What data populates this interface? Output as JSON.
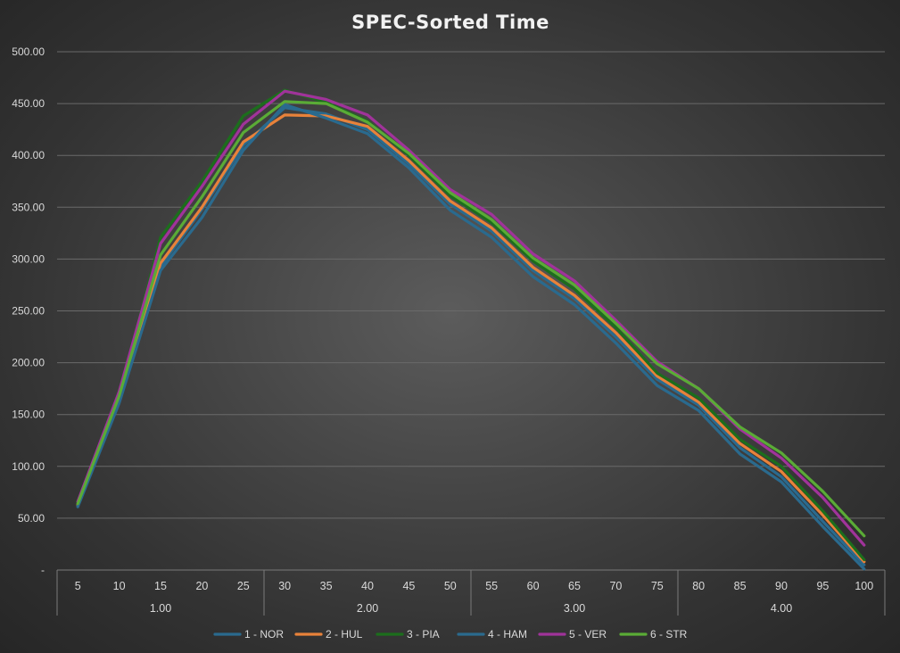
{
  "chart_data": {
    "type": "line",
    "title": "SPEC-Sorted Time",
    "xlabel": "",
    "ylabel": "",
    "ylim": [
      0,
      500
    ],
    "y_ticks": [
      {
        "value": 0,
        "label": "-"
      },
      {
        "value": 50,
        "label": "50.00"
      },
      {
        "value": 100,
        "label": "100.00"
      },
      {
        "value": 150,
        "label": "150.00"
      },
      {
        "value": 200,
        "label": "200.00"
      },
      {
        "value": 250,
        "label": "250.00"
      },
      {
        "value": 300,
        "label": "300.00"
      },
      {
        "value": 350,
        "label": "350.00"
      },
      {
        "value": 400,
        "label": "400.00"
      },
      {
        "value": 450,
        "label": "450.00"
      },
      {
        "value": 500,
        "label": "500.00"
      }
    ],
    "categories": [
      "5",
      "10",
      "15",
      "20",
      "25",
      "30",
      "35",
      "40",
      "45",
      "50",
      "55",
      "60",
      "65",
      "70",
      "75",
      "80",
      "85",
      "90",
      "95",
      "100"
    ],
    "groups": [
      {
        "label": "1.00",
        "start": 0,
        "end": 4
      },
      {
        "label": "2.00",
        "start": 5,
        "end": 9
      },
      {
        "label": "3.00",
        "start": 10,
        "end": 14
      },
      {
        "label": "4.00",
        "start": 15,
        "end": 19
      }
    ],
    "legend_position": "bottom",
    "series": [
      {
        "name": "1 - NOR",
        "color": "#2a6a8e",
        "values": [
          62,
          163,
          293,
          348,
          410,
          446,
          440,
          425,
          392,
          353,
          327,
          289,
          262,
          225,
          184,
          159,
          118,
          90,
          47,
          5
        ]
      },
      {
        "name": "2 - HUL",
        "color": "#e8823a",
        "values": [
          63,
          165,
          296,
          350,
          413,
          439,
          438,
          428,
          395,
          356,
          330,
          292,
          265,
          229,
          187,
          162,
          122,
          95,
          53,
          8
        ]
      },
      {
        "name": "3 - PIA",
        "color": "#1c6e1c",
        "values": [
          64,
          168,
          321,
          375,
          438,
          463,
          451,
          433,
          400,
          361,
          335,
          298,
          271,
          234,
          190,
          166,
          126,
          100,
          57,
          10
        ]
      },
      {
        "name": "4 - HAM",
        "color": "#2a6a8e",
        "values": [
          61,
          161,
          289,
          340,
          405,
          449,
          436,
          421,
          388,
          347,
          321,
          283,
          256,
          219,
          178,
          154,
          112,
          85,
          42,
          1
        ]
      },
      {
        "name": "5 - VER",
        "color": "#a0339a",
        "values": [
          66,
          172,
          315,
          370,
          430,
          462,
          454,
          439,
          405,
          367,
          343,
          305,
          279,
          241,
          201,
          175,
          136,
          108,
          70,
          24
        ]
      },
      {
        "name": "6 - STR",
        "color": "#5aab36",
        "values": [
          64,
          168,
          304,
          360,
          422,
          452,
          450,
          432,
          402,
          364,
          338,
          301,
          275,
          238,
          199,
          175,
          138,
          113,
          76,
          33
        ]
      }
    ]
  }
}
